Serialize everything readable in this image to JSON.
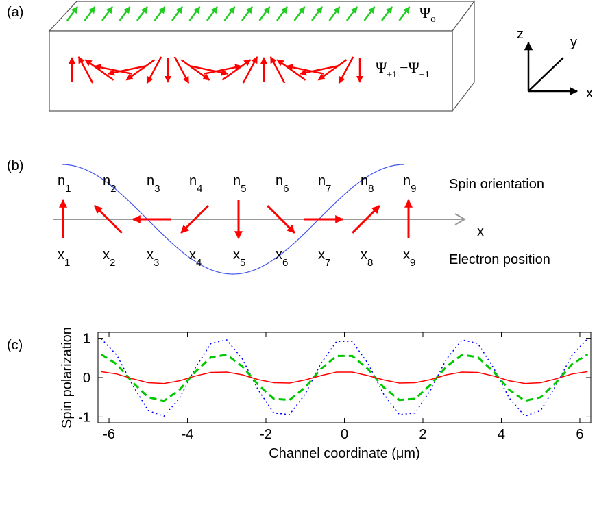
{
  "panel_a": {
    "label": "(a)",
    "top_state": {
      "base": "Ψ",
      "sub": "o"
    },
    "inner_state": {
      "first": "Ψ",
      "first_sub": "+1",
      "minus": "−",
      "second": "Ψ",
      "second_sub": "−1"
    },
    "axis_z": "z",
    "axis_y": "y",
    "axis_x": "x"
  },
  "panel_b": {
    "label": "(b)",
    "spin_labels": [
      {
        "base": "n",
        "sub": "1"
      },
      {
        "base": "n",
        "sub": "2"
      },
      {
        "base": "n",
        "sub": "3"
      },
      {
        "base": "n",
        "sub": "4"
      },
      {
        "base": "n",
        "sub": "5"
      },
      {
        "base": "n",
        "sub": "6"
      },
      {
        "base": "n",
        "sub": "7"
      },
      {
        "base": "n",
        "sub": "8"
      },
      {
        "base": "n",
        "sub": "9"
      }
    ],
    "position_labels": [
      {
        "base": "x",
        "sub": "1"
      },
      {
        "base": "x",
        "sub": "2"
      },
      {
        "base": "x",
        "sub": "3"
      },
      {
        "base": "x",
        "sub": "4"
      },
      {
        "base": "x",
        "sub": "5"
      },
      {
        "base": "x",
        "sub": "6"
      },
      {
        "base": "x",
        "sub": "7"
      },
      {
        "base": "x",
        "sub": "8"
      },
      {
        "base": "x",
        "sub": "9"
      }
    ],
    "spin_orientation": "Spin orientation",
    "electron_position": "Electron position",
    "axis_label": "x"
  },
  "chart_data": {
    "type": "line",
    "panel_label": "(c)",
    "x_label": "Channel coordinate (μm)",
    "y_label": "Spin polarization",
    "x": [
      -6.2,
      -5.8,
      -5.4,
      -5,
      -4.6,
      -4.2,
      -3.8,
      -3.4,
      -3,
      -2.6,
      -2.2,
      -1.8,
      -1.4,
      -1,
      -0.6,
      -0.2,
      0.2,
      0.6,
      1,
      1.4,
      1.8,
      2.2,
      2.6,
      3,
      3.4,
      3.8,
      4.2,
      4.6,
      5,
      5.4,
      5.8,
      6.2
    ],
    "series": [
      {
        "color": "#0000ff",
        "style": "dotted",
        "values": [
          0.99,
          0.57,
          -0.19,
          -0.84,
          -0.98,
          -0.52,
          0.25,
          0.87,
          0.96,
          0.47,
          -0.31,
          -0.9,
          -0.94,
          -0.42,
          0.36,
          0.92,
          0.92,
          0.36,
          -0.42,
          -0.94,
          -0.9,
          -0.31,
          0.47,
          0.96,
          0.87,
          0.25,
          -0.52,
          -0.98,
          -0.84,
          -0.19,
          0.57,
          0.99
        ]
      },
      {
        "color": "#00c800",
        "style": "dashed",
        "values": [
          0.59,
          0.34,
          -0.12,
          -0.5,
          -0.59,
          -0.31,
          0.15,
          0.52,
          0.58,
          0.28,
          -0.18,
          -0.54,
          -0.57,
          -0.25,
          0.22,
          0.55,
          0.55,
          0.22,
          -0.25,
          -0.57,
          -0.54,
          -0.18,
          0.28,
          0.58,
          0.52,
          0.15,
          -0.31,
          -0.59,
          -0.5,
          -0.12,
          0.34,
          0.59
        ]
      },
      {
        "color": "#ff0000",
        "style": "solid",
        "values": [
          0.15,
          0.09,
          -0.03,
          -0.13,
          -0.15,
          -0.08,
          0.04,
          0.13,
          0.14,
          0.07,
          -0.05,
          -0.13,
          -0.14,
          -0.06,
          0.05,
          0.14,
          0.14,
          0.05,
          -0.06,
          -0.14,
          -0.13,
          -0.05,
          0.07,
          0.14,
          0.13,
          0.04,
          -0.08,
          -0.15,
          -0.13,
          -0.03,
          0.09,
          0.15
        ]
      }
    ],
    "xlim": [
      -6.28,
      6.28
    ],
    "ylim": [
      -1.15,
      1.15
    ],
    "xticks": [
      -6,
      -4,
      -2,
      0,
      2,
      4,
      6
    ],
    "yticks": [
      -1,
      0,
      1
    ]
  }
}
